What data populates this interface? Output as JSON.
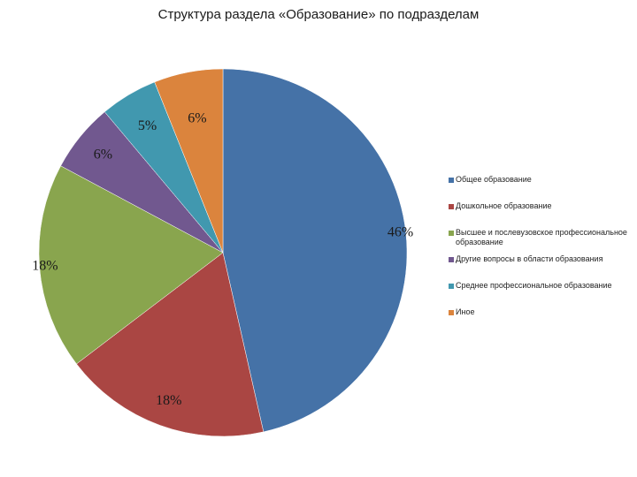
{
  "chart_data": {
    "type": "pie",
    "title": "Структура раздела «Образование» по подразделам",
    "slices": [
      {
        "name": "Общее образование",
        "value": 46,
        "label": "46%",
        "color": "#4572A7"
      },
      {
        "name": "Дошкольное образование",
        "value": 18,
        "label": "18%",
        "color": "#AA4643"
      },
      {
        "name": "Высшее и послевузовское профессиональное образование",
        "value": 18,
        "label": "18%",
        "color": "#89A54E"
      },
      {
        "name": "Другие вопросы в области образования",
        "value": 6,
        "label": "6%",
        "color": "#71588F"
      },
      {
        "name": "Среднее профессиональное образование",
        "value": 5,
        "label": "5%",
        "color": "#4198AF"
      },
      {
        "name": "Иное",
        "value": 6,
        "label": "6%",
        "color": "#DB843D"
      }
    ],
    "legend_position": "right"
  }
}
